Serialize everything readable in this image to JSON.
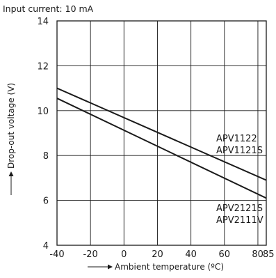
{
  "chart_data": {
    "type": "line",
    "title": "Input current: 10 mA",
    "xlabel": "Ambient temperature (ºC)",
    "ylabel": "Drop-out voltage (V)",
    "xlim": [
      -40,
      85
    ],
    "ylim": [
      4,
      14
    ],
    "x_ticks": [
      -40,
      -20,
      0,
      20,
      40,
      60,
      80,
      85
    ],
    "x_tick_labels": [
      "-40",
      "-20",
      "0",
      "20",
      "40",
      "60",
      "80",
      "85"
    ],
    "y_ticks": [
      4,
      6,
      8,
      10,
      12,
      14
    ],
    "y_tick_labels": [
      "4",
      "6",
      "8",
      "10",
      "12",
      "14"
    ],
    "grid": true,
    "series": [
      {
        "name": "APV1122\nAPV1121S",
        "x": [
          -40,
          85
        ],
        "y": [
          11.0,
          6.9
        ]
      },
      {
        "name": "APV2121S\nAPV2111V",
        "x": [
          -40,
          85
        ],
        "y": [
          10.55,
          6.1
        ]
      }
    ],
    "annotations": [
      {
        "series": 0,
        "lines": [
          "APV1122",
          "APV1121S"
        ]
      },
      {
        "series": 1,
        "lines": [
          "APV2121S",
          "APV2111V"
        ]
      }
    ]
  }
}
